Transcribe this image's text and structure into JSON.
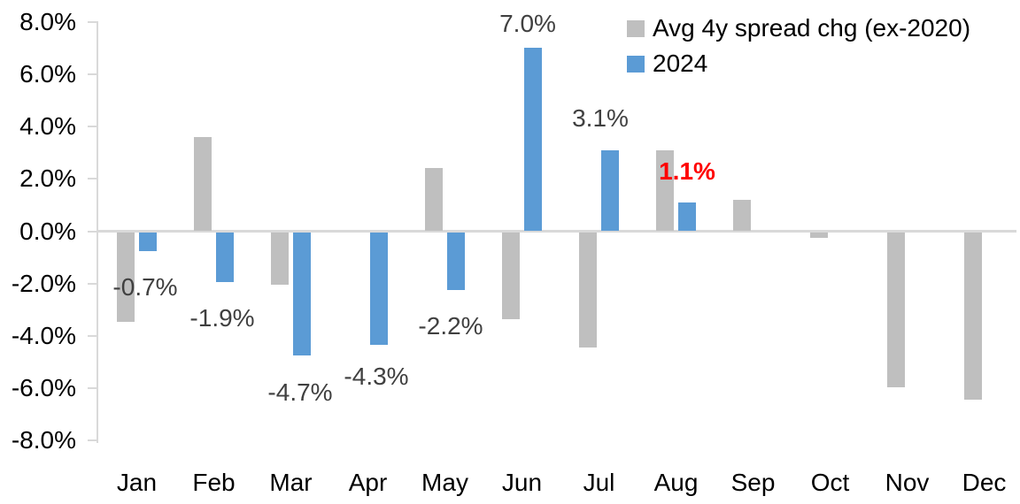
{
  "chart_data": {
    "type": "bar",
    "title": "",
    "xlabel": "",
    "ylabel": "",
    "grid": false,
    "categories": [
      "Jan",
      "Feb",
      "Mar",
      "Apr",
      "May",
      "Jun",
      "Jul",
      "Aug",
      "Sep",
      "Oct",
      "Nov",
      "Dec"
    ],
    "series": [
      {
        "name": "Avg 4y spread chg (ex-2020)",
        "color": "#BFBFBF",
        "values": [
          -3.4,
          3.6,
          -2.0,
          0.0,
          2.4,
          -3.3,
          -4.4,
          3.1,
          1.2,
          -0.2,
          -5.9,
          -6.4
        ]
      },
      {
        "name": "2024",
        "color": "#5B9BD5",
        "values": [
          -0.7,
          -1.9,
          -4.7,
          -4.3,
          -2.2,
          7.0,
          3.1,
          1.1,
          null,
          null,
          null,
          null
        ]
      }
    ],
    "data_labels": [
      {
        "month": "Jan",
        "text": "-0.7%",
        "color": "#404040",
        "bold": false
      },
      {
        "month": "Feb",
        "text": "-1.9%",
        "color": "#404040",
        "bold": false
      },
      {
        "month": "Mar",
        "text": "-4.7%",
        "color": "#404040",
        "bold": false
      },
      {
        "month": "Apr",
        "text": "-4.3%",
        "color": "#404040",
        "bold": false
      },
      {
        "month": "May",
        "text": "-2.2%",
        "color": "#404040",
        "bold": false
      },
      {
        "month": "Jun",
        "text": "7.0%",
        "color": "#404040",
        "bold": false
      },
      {
        "month": "Jul",
        "text": "3.1%",
        "color": "#404040",
        "bold": false
      },
      {
        "month": "Aug",
        "text": "1.1%",
        "color": "#FF0000",
        "bold": true
      }
    ],
    "y_axis": {
      "min": -8,
      "max": 8,
      "step": 2,
      "ticks": [
        "8.0%",
        "6.0%",
        "4.0%",
        "2.0%",
        "0.0%",
        "-2.0%",
        "-4.0%",
        "-6.0%",
        "-8.0%"
      ]
    },
    "legend": {
      "position": "top-right",
      "entries": [
        "Avg 4y spread chg (ex-2020)",
        "2024"
      ]
    },
    "ylim": [
      -8,
      8
    ]
  },
  "colors": {
    "axis_line": "#D9D9D9",
    "tick_text": "#000000",
    "data_label_default": "#404040",
    "data_label_highlight": "#FF0000",
    "series_gray": "#BFBFBF",
    "series_blue": "#5B9BD5"
  }
}
